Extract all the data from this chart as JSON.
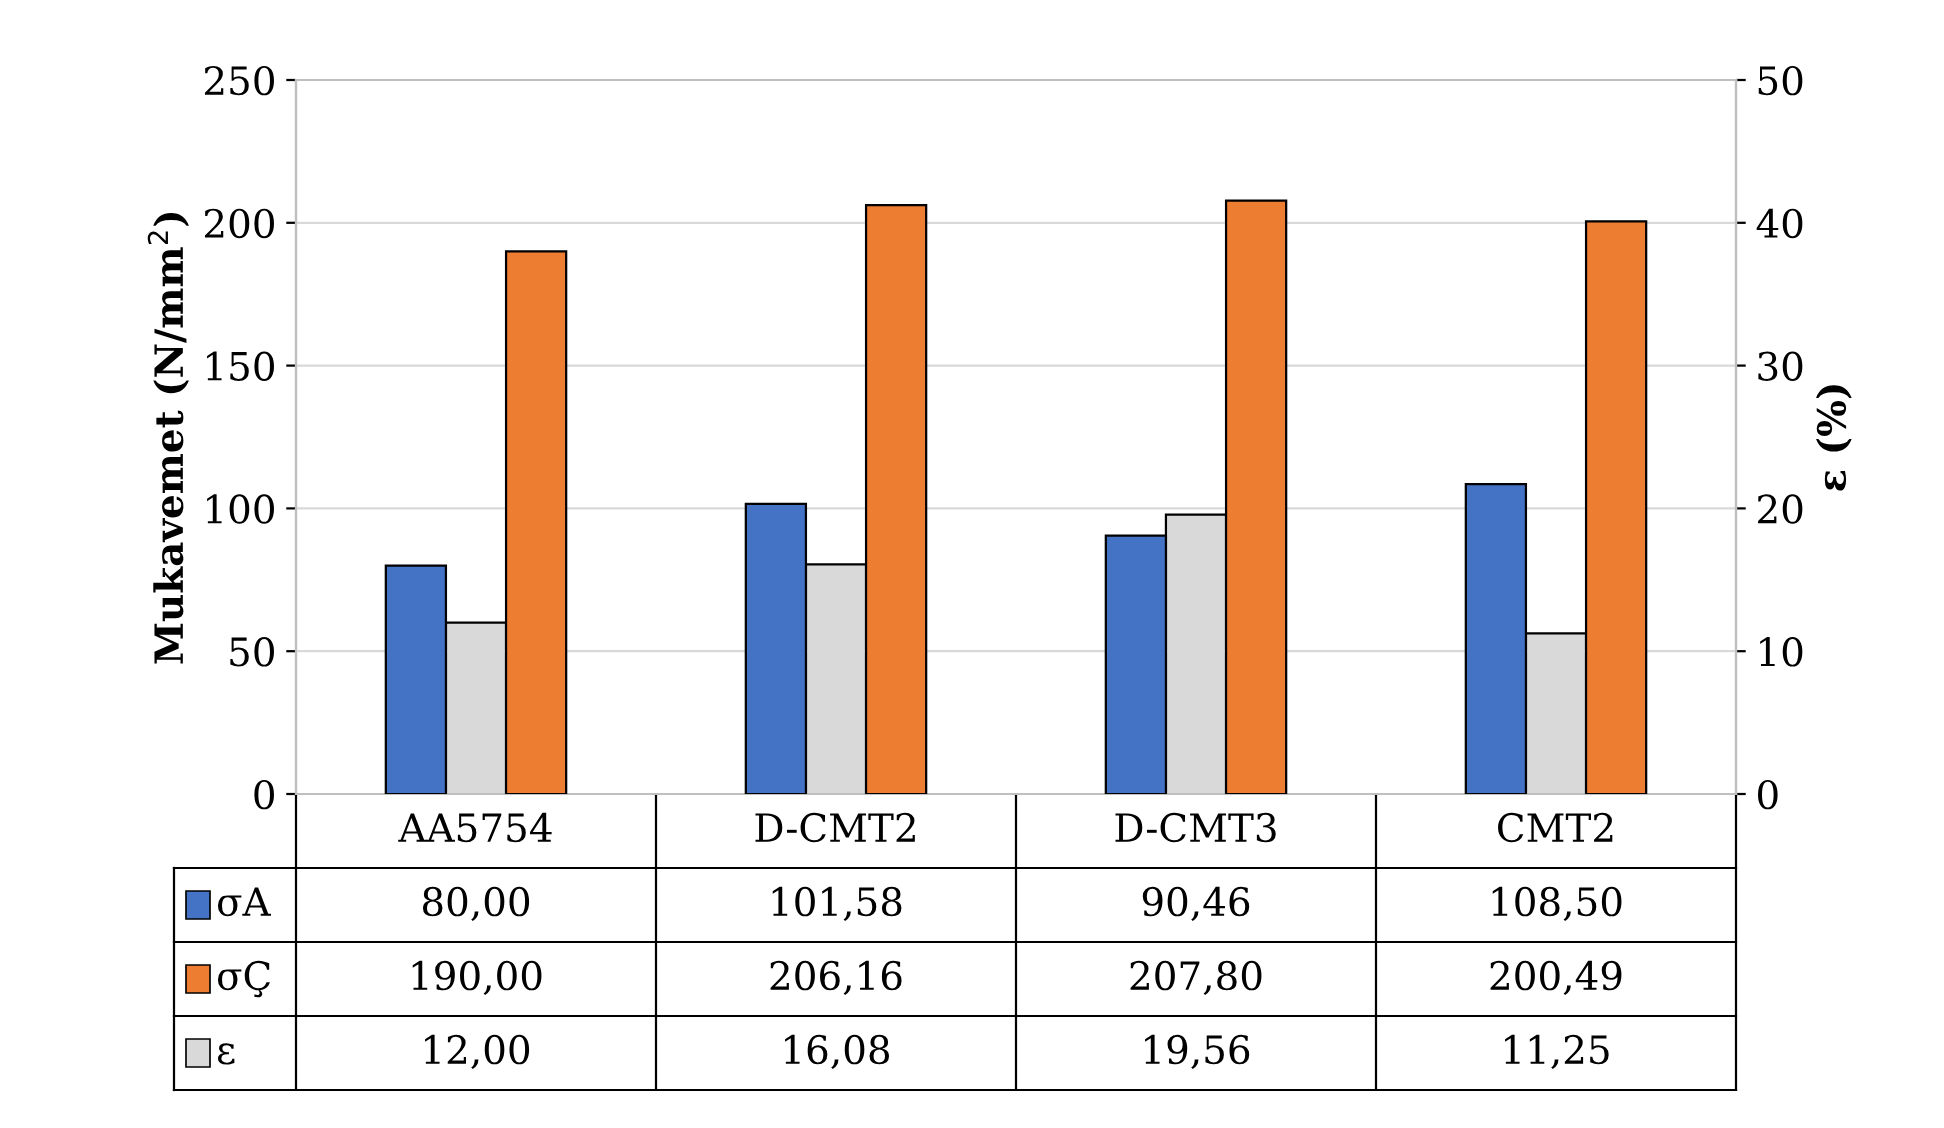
{
  "chart_data": {
    "type": "bar",
    "ylabel": "Mukavemet (N/mm$^{2}$)",
    "y2label": "ε (%)",
    "categories": [
      "AA5754",
      "D-CMT2",
      "D-CMT3",
      "CMT2"
    ],
    "series": [
      {
        "name": "σA",
        "color": "#4472c4",
        "values": [
          80.0,
          101.58,
          90.46,
          108.5
        ],
        "value_labels": [
          "80,00",
          "101,58",
          "90,46",
          "108,50"
        ]
      },
      {
        "name": "ε",
        "color": "#d9d9d9",
        "axis": "y2",
        "values": [
          12.0,
          16.08,
          19.56,
          11.25
        ],
        "value_labels": [
          "12,00",
          "16,08",
          "19,56",
          "11,25"
        ]
      },
      {
        "name": "σÇ",
        "color": "#ed7d31",
        "values": [
          190.0,
          206.16,
          207.8,
          200.49
        ],
        "value_labels": [
          "190,00",
          "206,16",
          "207,80",
          "200,49"
        ]
      }
    ],
    "ylim": [
      0,
      250
    ],
    "yticks": [
      0,
      50,
      100,
      150,
      200,
      250
    ],
    "y2lim": [
      0,
      50
    ],
    "y2ticks": [
      0,
      10,
      20,
      30,
      40,
      50
    ],
    "grid": "y",
    "legend": "bottom"
  }
}
